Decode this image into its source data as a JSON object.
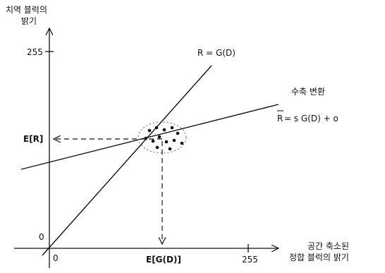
{
  "y_axis_title": [
    "치역 블럭의",
    "밝기"
  ],
  "x_axis_title": [
    "공간 축소된",
    "정합 블럭의 밝기"
  ],
  "y_tick_255": "255",
  "y_origin": "0",
  "x_origin": "0",
  "x_tick_255": "255",
  "x_mark": "E[G(D)]",
  "y_mark": "E[R]",
  "line_identity": "R = G(D)",
  "line_contraction_title": "수축 변환",
  "line_contraction_eq_prefix": "R",
  "line_contraction_eq_rest": "= s G(D) + o",
  "colors": {
    "ink": "#111111"
  }
}
